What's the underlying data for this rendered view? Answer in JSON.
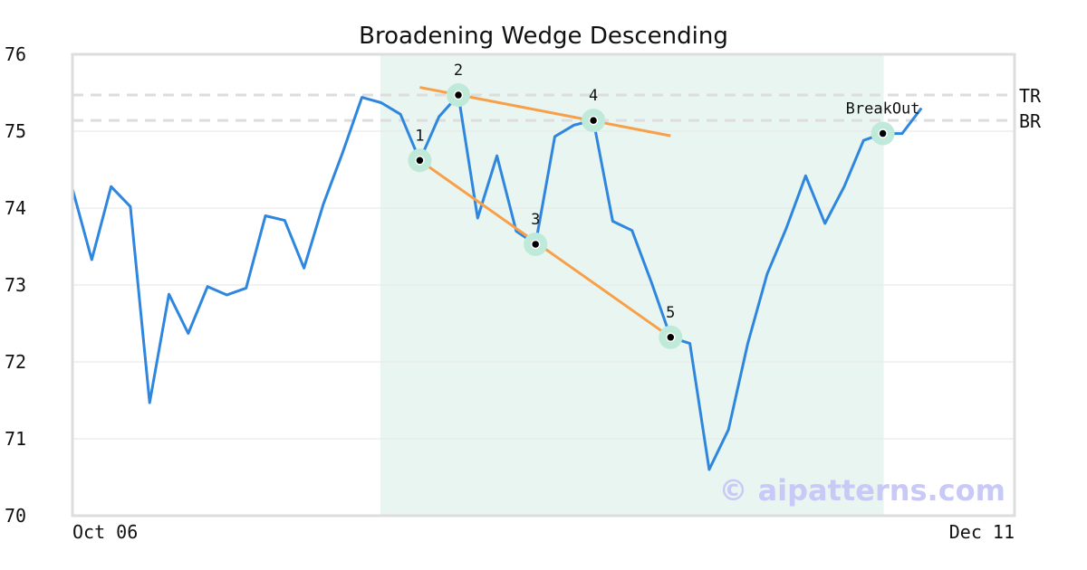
{
  "chart_data": {
    "type": "line",
    "title": "Broadening Wedge Descending",
    "xlabel": "",
    "ylabel": "",
    "ylim": [
      70,
      76
    ],
    "yticks": [
      70,
      71,
      72,
      73,
      74,
      75,
      76
    ],
    "x_tick_labels": {
      "first": "Oct 06",
      "last": "Dec 11"
    },
    "grid": true,
    "series": [
      {
        "color": "#2e86de",
        "values": [
          74.25,
          73.33,
          74.28,
          74.02,
          71.47,
          72.88,
          72.37,
          72.98,
          72.87,
          72.96,
          73.9,
          73.84,
          73.22,
          74.05,
          74.72,
          75.44,
          75.37,
          75.22,
          74.62,
          75.19,
          75.47,
          73.87,
          74.68,
          73.7,
          73.53,
          74.93,
          75.08,
          75.14,
          73.83,
          73.71,
          73.04,
          72.32,
          72.24,
          70.6,
          71.12,
          72.24,
          73.14,
          73.74,
          74.42,
          73.8,
          74.28,
          74.88,
          74.97,
          74.97,
          75.3
        ]
      }
    ],
    "pattern_window": {
      "start_index": 16,
      "end_index": 42,
      "color": "#e8f5f0"
    },
    "reference_lines": [
      {
        "label": "TR",
        "value": 75.47
      },
      {
        "label": "BR",
        "value": 75.14
      }
    ],
    "trendlines": [
      {
        "color": "#f7a049",
        "from": {
          "index": 18,
          "value": 75.57
        },
        "to": {
          "index": 31,
          "value": 74.94
        }
      },
      {
        "color": "#f7a049",
        "from": {
          "index": 18,
          "value": 74.62
        },
        "to": {
          "index": 31,
          "value": 72.32
        }
      }
    ],
    "points": [
      {
        "label": "1",
        "index": 18,
        "value": 74.62
      },
      {
        "label": "2",
        "index": 20,
        "value": 75.47
      },
      {
        "label": "3",
        "index": 24,
        "value": 73.53
      },
      {
        "label": "4",
        "index": 27,
        "value": 75.14
      },
      {
        "label": "5",
        "index": 31,
        "value": 72.32
      },
      {
        "label": "BreakOut",
        "index": 42,
        "value": 74.97
      }
    ],
    "watermark": "© aipatterns.com"
  }
}
